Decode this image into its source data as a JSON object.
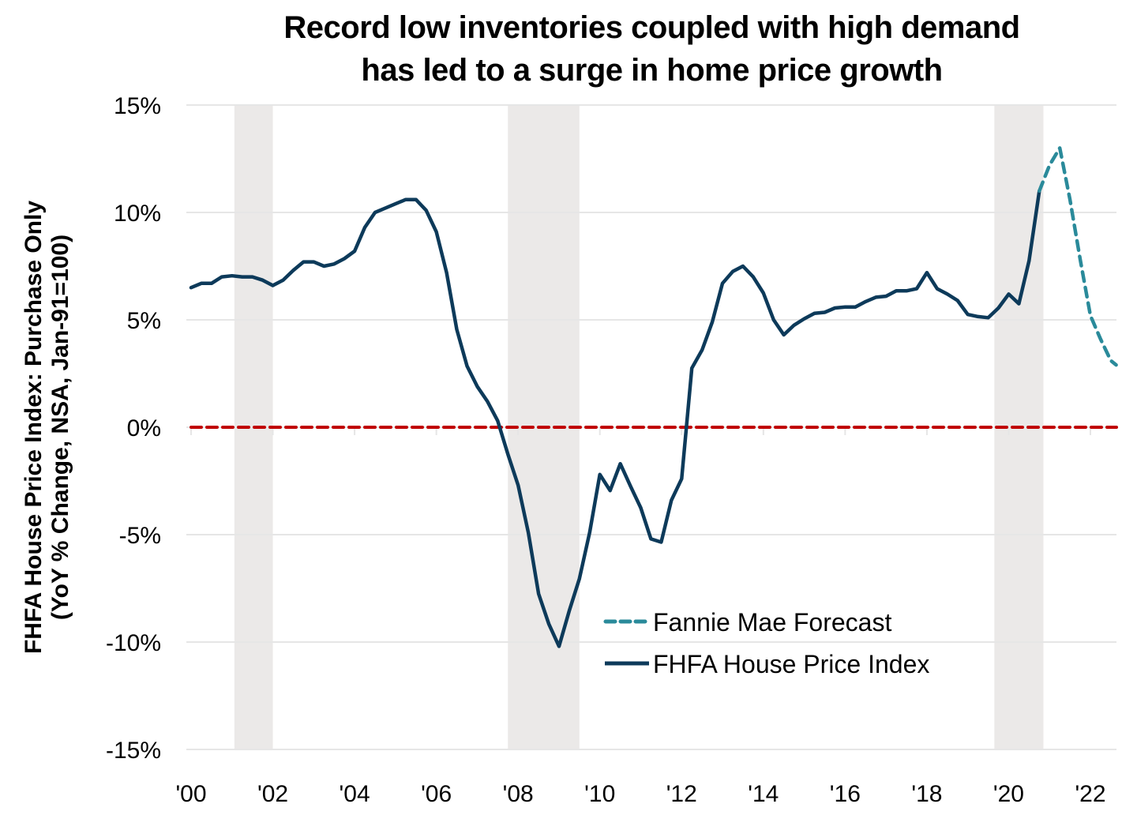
{
  "chart_data": {
    "type": "line",
    "title": [
      "Record low inventories coupled with high demand",
      "has led to a surge in home price growth"
    ],
    "ylabel": [
      "FHFA House Price Index: Purchase Only",
      "(YoY % Change, NSA, Jan-91=100)"
    ],
    "xlabel": "",
    "ylim": [
      -15,
      15
    ],
    "xlim": [
      2000,
      2022.65
    ],
    "yticks": [
      15,
      10,
      5,
      0,
      -5,
      -10,
      -15
    ],
    "ytick_labels": [
      "15%",
      "10%",
      "5%",
      "0%",
      "-5%",
      "-10%",
      "-15%"
    ],
    "xticks": [
      2000,
      2002,
      2004,
      2006,
      2008,
      2010,
      2012,
      2014,
      2016,
      2018,
      2020,
      2022
    ],
    "xtick_labels": [
      "'00",
      "'02",
      "'04",
      "'06",
      "'08",
      "'10",
      "'12",
      "'14",
      "'16",
      "'18",
      "'20",
      "'22"
    ],
    "grid": "horizontal",
    "legend_position": "bottom-center",
    "reference_line": {
      "value": 0,
      "color": "#c00000",
      "style": "dashed"
    },
    "recession_bands": [
      {
        "start": 2001.06,
        "end": 2002.0
      },
      {
        "start": 2007.75,
        "end": 2009.5
      },
      {
        "start": 2019.65,
        "end": 2020.85
      }
    ],
    "colors": {
      "fhfa": "#0d3a5a",
      "forecast": "#2a8a9a",
      "recession": "#ebe9e8",
      "grid": "#e6e6e6",
      "zero_line": "#c00000"
    },
    "series": [
      {
        "name": "Fannie Mae Forecast",
        "style": "dashed",
        "x": [
          2020.75,
          2021.0,
          2021.25,
          2021.5,
          2021.75,
          2022.0,
          2022.25,
          2022.5,
          2022.63
        ],
        "values": [
          11.0,
          12.2,
          13.0,
          10.6,
          7.8,
          5.2,
          4.1,
          3.1,
          2.9
        ]
      },
      {
        "name": "FHFA House Price Index",
        "style": "solid",
        "x_start": 2000.0,
        "x_step": 0.25,
        "values": [
          6.5,
          6.7,
          6.7,
          7.0,
          7.05,
          7.0,
          7.0,
          6.85,
          6.6,
          6.85,
          7.3,
          7.7,
          7.7,
          7.5,
          7.6,
          7.85,
          8.2,
          9.3,
          10.0,
          10.2,
          10.4,
          10.6,
          10.6,
          10.1,
          9.1,
          7.2,
          4.55,
          2.85,
          1.9,
          1.2,
          0.3,
          -1.25,
          -2.7,
          -4.9,
          -7.75,
          -9.15,
          -10.2,
          -8.55,
          -7.05,
          -4.9,
          -2.2,
          -2.95,
          -1.7,
          -2.75,
          -3.75,
          -5.2,
          -5.35,
          -3.4,
          -2.4,
          2.75,
          3.6,
          4.9,
          6.7,
          7.25,
          7.5,
          7.0,
          6.25,
          5.0,
          4.3,
          4.75,
          5.05,
          5.3,
          5.35,
          5.55,
          5.6,
          5.6,
          5.85,
          6.05,
          6.1,
          6.35,
          6.35,
          6.45,
          7.2,
          6.45,
          6.2,
          5.9,
          5.25,
          5.15,
          5.1,
          5.55,
          6.2,
          5.75,
          7.75,
          11.0
        ]
      }
    ]
  }
}
